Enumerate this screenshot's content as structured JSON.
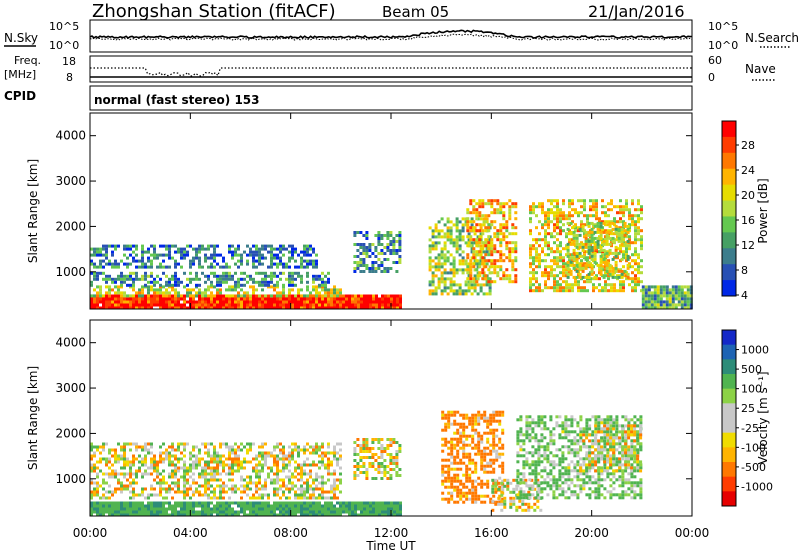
{
  "header": {
    "title": "Zhongshan Station (fitACF)",
    "beam": "Beam 05",
    "date": "21/Jan/2016"
  },
  "noise_panel": {
    "left_label": "N.Sky",
    "right_label": "N.Search",
    "left_ticks": [
      "10^5",
      "10^0"
    ],
    "right_ticks": [
      "10^5",
      "10^0"
    ]
  },
  "freq_panel": {
    "left_label_1": "Freq.",
    "left_label_2": "[MHz]",
    "right_label": "Nave",
    "left_ticks": [
      "18",
      "8"
    ],
    "right_ticks": [
      "60",
      "0"
    ]
  },
  "cpid_panel": {
    "label": "CPID",
    "text": "normal (fast stereo) 153"
  },
  "x_axis": {
    "label": "Time UT",
    "ticks": [
      "00:00",
      "04:00",
      "08:00",
      "12:00",
      "16:00",
      "20:00",
      "00:00"
    ]
  },
  "power_panel": {
    "ylabel": "Slant Range [km]",
    "yticks": [
      "4000",
      "3000",
      "2000",
      "1000"
    ],
    "colorbar": {
      "label": "Power [dB]",
      "ticks": [
        "28",
        "24",
        "20",
        "16",
        "12",
        "8",
        "4"
      ],
      "colors": [
        "#ff0000",
        "#ff3c00",
        "#ff7800",
        "#ffb400",
        "#e6dc00",
        "#b4dc3c",
        "#64c850",
        "#46a064",
        "#3c7d8c",
        "#2850b4",
        "#0028e6"
      ]
    }
  },
  "velocity_panel": {
    "ylabel": "Slant Range [km]",
    "yticks": [
      "4000",
      "3000",
      "2000",
      "1000"
    ],
    "colorbar": {
      "label": "Velocity [m s⁻¹]",
      "ticks": [
        "1000",
        "500",
        "100",
        "25",
        "-25",
        "-100",
        "-500",
        "-1000"
      ],
      "colors": [
        "#1428c8",
        "#1e64b4",
        "#2d8c78",
        "#50b450",
        "#8cd246",
        "#c8c8c8",
        "#c8c8c8",
        "#f0dc00",
        "#ffb400",
        "#ff7800",
        "#ff3c00",
        "#e60000"
      ]
    }
  },
  "chart_data": {
    "type": "heatmap",
    "title": "Zhongshan Station (fitACF)",
    "xlabel": "Time UT",
    "ylabel": "Slant Range [km]",
    "xlim": [
      "00:00",
      "24:00"
    ],
    "ylim": [
      180,
      4500
    ],
    "power_scale": [
      0,
      30
    ],
    "velocity_scale": [
      -1000,
      1000
    ],
    "series": [
      {
        "name": "Power [dB]",
        "echo_regions": [
          {
            "t": [
              0,
              12.4
            ],
            "range": [
              180,
              500
            ],
            "value": 28
          },
          {
            "t": [
              0,
              10
            ],
            "range": [
              500,
              700
            ],
            "value": 16
          },
          {
            "t": [
              0,
              9.5
            ],
            "range": [
              700,
              1000
            ],
            "value": 8
          },
          {
            "t": [
              0,
              9
            ],
            "range": [
              1100,
              1600
            ],
            "value": 6
          },
          {
            "t": [
              10.5,
              12.3
            ],
            "range": [
              1000,
              1900
            ],
            "value": 8
          },
          {
            "t": [
              13.5,
              16
            ],
            "range": [
              500,
              2200
            ],
            "value": 14
          },
          {
            "t": [
              15,
              17
            ],
            "range": [
              800,
              2600
            ],
            "value": 20
          },
          {
            "t": [
              17.5,
              22
            ],
            "range": [
              600,
              2600
            ],
            "value": 18
          },
          {
            "t": [
              19,
              21.5
            ],
            "range": [
              900,
              2100
            ],
            "value": 16
          },
          {
            "t": [
              22,
              24
            ],
            "range": [
              200,
              700
            ],
            "value": 10
          }
        ]
      },
      {
        "name": "Velocity [m s⁻¹]",
        "echo_regions": [
          {
            "t": [
              0,
              12.4
            ],
            "range": [
              180,
              500
            ],
            "value": 250
          },
          {
            "t": [
              0,
              10
            ],
            "range": [
              600,
              1800
            ],
            "value": 0
          },
          {
            "t": [
              10.5,
              12.3
            ],
            "range": [
              1000,
              1900
            ],
            "value": 0
          },
          {
            "t": [
              14,
              16.5
            ],
            "range": [
              500,
              2500
            ],
            "value": -150
          },
          {
            "t": [
              16,
              18
            ],
            "range": [
              300,
              1000
            ],
            "value": 0
          },
          {
            "t": [
              17,
              22
            ],
            "range": [
              600,
              2400
            ],
            "value": 120
          },
          {
            "t": [
              19.5,
              22
            ],
            "range": [
              1200,
              2200
            ],
            "value": 0
          }
        ]
      }
    ]
  }
}
